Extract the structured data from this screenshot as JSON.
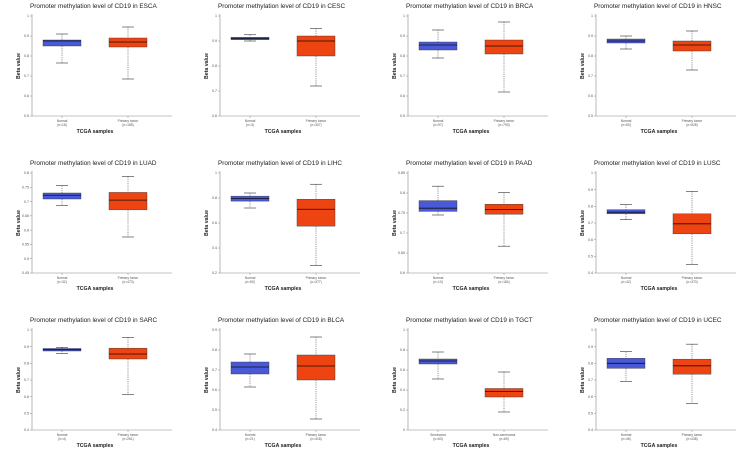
{
  "colors": {
    "normal": "#4a59d8",
    "tumor": "#ee4411",
    "median": "#111111",
    "whisker": "#333333",
    "axis": "#888888"
  },
  "chart_data": [
    {
      "type": "box",
      "title": "Promoter methylation level of CD19 in ESCA",
      "ylabel": "Beta value",
      "xlabel": "TCGA samples",
      "yticks": [
        "0.5",
        "0.6",
        "0.7",
        "0.8",
        "0.9",
        "1"
      ],
      "ylim": [
        0.5,
        1.0
      ],
      "groups": [
        {
          "name": "Normal",
          "n": "(n=16)",
          "stats": {
            "min": 0.765,
            "q1": 0.85,
            "median": 0.875,
            "q3": 0.88,
            "max": 0.91
          }
        },
        {
          "name": "Primary tumor",
          "n": "(n=185)",
          "stats": {
            "min": 0.685,
            "q1": 0.845,
            "median": 0.87,
            "q3": 0.89,
            "max": 0.945
          }
        }
      ]
    },
    {
      "type": "box",
      "title": "Promoter methylation level of CD19 in CESC",
      "ylabel": "Beta value",
      "xlabel": "TCGA samples",
      "yticks": [
        "0.6",
        "0.7",
        "0.8",
        "0.9",
        "1"
      ],
      "ylim": [
        0.6,
        1.0
      ],
      "groups": [
        {
          "name": "Normal",
          "n": "(n=3)",
          "stats": {
            "min": 0.9,
            "q1": 0.905,
            "median": 0.91,
            "q3": 0.915,
            "max": 0.925
          }
        },
        {
          "name": "Primary tumor",
          "n": "(n=307)",
          "stats": {
            "min": 0.72,
            "q1": 0.84,
            "median": 0.9,
            "q3": 0.92,
            "max": 0.95
          }
        }
      ]
    },
    {
      "type": "box",
      "title": "Promoter methylation level of CD19 in BRCA",
      "ylabel": "Beta value",
      "xlabel": "TCGA samples",
      "yticks": [
        "0.5",
        "0.6",
        "0.7",
        "0.8",
        "0.9",
        "1"
      ],
      "ylim": [
        0.5,
        1.0
      ],
      "groups": [
        {
          "name": "Normal",
          "n": "(n=97)",
          "stats": {
            "min": 0.79,
            "q1": 0.83,
            "median": 0.855,
            "q3": 0.87,
            "max": 0.93
          }
        },
        {
          "name": "Primary tumor",
          "n": "(n=793)",
          "stats": {
            "min": 0.62,
            "q1": 0.81,
            "median": 0.85,
            "q3": 0.88,
            "max": 0.97
          }
        }
      ]
    },
    {
      "type": "box",
      "title": "Promoter methylation level of CD19 in HNSC",
      "ylabel": "Beta value",
      "xlabel": "TCGA samples",
      "yticks": [
        "0.5",
        "0.6",
        "0.7",
        "0.8",
        "0.9",
        "1"
      ],
      "ylim": [
        0.5,
        1.0
      ],
      "groups": [
        {
          "name": "Normal",
          "n": "(n=50)",
          "stats": {
            "min": 0.835,
            "q1": 0.865,
            "median": 0.875,
            "q3": 0.885,
            "max": 0.9
          }
        },
        {
          "name": "Primary tumor",
          "n": "(n=528)",
          "stats": {
            "min": 0.73,
            "q1": 0.825,
            "median": 0.855,
            "q3": 0.875,
            "max": 0.925
          }
        }
      ]
    },
    {
      "type": "box",
      "title": "Promoter methylation level of CD19 in LUAD",
      "ylabel": "Beta value",
      "xlabel": "TCGA samples",
      "yticks": [
        "0.45",
        "0.5",
        "0.55",
        "0.6",
        "0.65",
        "0.7",
        "0.75",
        "0.8"
      ],
      "ylim": [
        0.45,
        0.8
      ],
      "groups": [
        {
          "name": "Normal",
          "n": "(n=32)",
          "stats": {
            "min": 0.686,
            "q1": 0.709,
            "median": 0.722,
            "q3": 0.73,
            "max": 0.756
          }
        },
        {
          "name": "Primary tumor",
          "n": "(n=473)",
          "stats": {
            "min": 0.576,
            "q1": 0.671,
            "median": 0.705,
            "q3": 0.732,
            "max": 0.788
          }
        }
      ]
    },
    {
      "type": "box",
      "title": "Promoter methylation level of CD19 in LIHC",
      "ylabel": "Beta value",
      "xlabel": "TCGA samples",
      "yticks": [
        "0.2",
        "0.4",
        "0.6",
        "0.8",
        "1"
      ],
      "ylim": [
        0.2,
        1.0
      ],
      "groups": [
        {
          "name": "Normal",
          "n": "(n=50)",
          "stats": {
            "min": 0.72,
            "q1": 0.775,
            "median": 0.795,
            "q3": 0.815,
            "max": 0.84
          }
        },
        {
          "name": "Primary tumor",
          "n": "(n=377)",
          "stats": {
            "min": 0.26,
            "q1": 0.575,
            "median": 0.71,
            "q3": 0.79,
            "max": 0.91
          }
        }
      ]
    },
    {
      "type": "box",
      "title": "Promoter methylation level of CD19 in PAAD",
      "ylabel": "Beta value",
      "xlabel": "TCGA samples",
      "yticks": [
        "0.6",
        "0.65",
        "0.7",
        "0.75",
        "0.8",
        "0.85"
      ],
      "ylim": [
        0.6,
        0.85
      ],
      "groups": [
        {
          "name": "Normal",
          "n": "(n=10)",
          "stats": {
            "min": 0.745,
            "q1": 0.754,
            "median": 0.762,
            "q3": 0.781,
            "max": 0.817
          }
        },
        {
          "name": "Primary tumor",
          "n": "(n=184)",
          "stats": {
            "min": 0.667,
            "q1": 0.747,
            "median": 0.759,
            "q3": 0.772,
            "max": 0.801
          }
        }
      ]
    },
    {
      "type": "box",
      "title": "Promoter methylation level of CD19 in LUSC",
      "ylabel": "Beta value",
      "xlabel": "TCGA samples",
      "yticks": [
        "0.4",
        "0.5",
        "0.6",
        "0.7",
        "0.8",
        "0.9",
        "1"
      ],
      "ylim": [
        0.4,
        1.0
      ],
      "groups": [
        {
          "name": "Normal",
          "n": "(n=42)",
          "stats": {
            "min": 0.72,
            "q1": 0.755,
            "median": 0.765,
            "q3": 0.78,
            "max": 0.81
          }
        },
        {
          "name": "Primary tumor",
          "n": "(n=370)",
          "stats": {
            "min": 0.45,
            "q1": 0.635,
            "median": 0.695,
            "q3": 0.755,
            "max": 0.89
          }
        }
      ]
    },
    {
      "type": "box",
      "title": "Promoter methylation level of CD19 in SARC",
      "ylabel": "Beta value",
      "xlabel": "TCGA samples",
      "yticks": [
        "0.4",
        "0.5",
        "0.6",
        "0.7",
        "0.8",
        "0.9",
        "1"
      ],
      "ylim": [
        0.4,
        1.0
      ],
      "groups": [
        {
          "name": "Normal",
          "n": "(n=4)",
          "stats": {
            "min": 0.858,
            "q1": 0.874,
            "median": 0.882,
            "q3": 0.889,
            "max": 0.896
          }
        },
        {
          "name": "Primary tumor",
          "n": "(n=261)",
          "stats": {
            "min": 0.614,
            "q1": 0.826,
            "median": 0.856,
            "q3": 0.891,
            "max": 0.956
          }
        }
      ]
    },
    {
      "type": "box",
      "title": "Promoter methylation level of CD19 in BLCA",
      "ylabel": "Beta value",
      "xlabel": "TCGA samples",
      "yticks": [
        "0.4",
        "0.5",
        "0.6",
        "0.7",
        "0.8",
        "0.9"
      ],
      "ylim": [
        0.4,
        0.9
      ],
      "groups": [
        {
          "name": "Normal",
          "n": "(n=21)",
          "stats": {
            "min": 0.615,
            "q1": 0.68,
            "median": 0.715,
            "q3": 0.74,
            "max": 0.78
          }
        },
        {
          "name": "Primary tumor",
          "n": "(n=418)",
          "stats": {
            "min": 0.455,
            "q1": 0.65,
            "median": 0.72,
            "q3": 0.775,
            "max": 0.865
          }
        }
      ]
    },
    {
      "type": "box",
      "title": "Promoter methylation level of CD19 in TGCT",
      "ylabel": "Beta value",
      "xlabel": "TCGA samples",
      "yticks": [
        "0",
        "0.2",
        "0.4",
        "0.6",
        "0.8",
        "1"
      ],
      "ylim": [
        0.0,
        1.0
      ],
      "groups": [
        {
          "name": "Seminoma",
          "n": "(n=63)",
          "stats": {
            "min": 0.51,
            "q1": 0.66,
            "median": 0.69,
            "q3": 0.71,
            "max": 0.78
          }
        },
        {
          "name": "Non-seminoma",
          "n": "(n=69)",
          "stats": {
            "min": 0.18,
            "q1": 0.33,
            "median": 0.385,
            "q3": 0.415,
            "max": 0.58
          }
        }
      ]
    },
    {
      "type": "box",
      "title": "Promoter methylation level of CD19 in UCEC",
      "ylabel": "Beta value",
      "xlabel": "TCGA samples",
      "yticks": [
        "0.4",
        "0.5",
        "0.6",
        "0.7",
        "0.8",
        "0.9",
        "1"
      ],
      "ylim": [
        0.4,
        1.0
      ],
      "groups": [
        {
          "name": "Normal",
          "n": "(n=46)",
          "stats": {
            "min": 0.69,
            "q1": 0.77,
            "median": 0.8,
            "q3": 0.83,
            "max": 0.87
          }
        },
        {
          "name": "Primary tumor",
          "n": "(n=438)",
          "stats": {
            "min": 0.56,
            "q1": 0.735,
            "median": 0.785,
            "q3": 0.825,
            "max": 0.915
          }
        }
      ]
    }
  ]
}
